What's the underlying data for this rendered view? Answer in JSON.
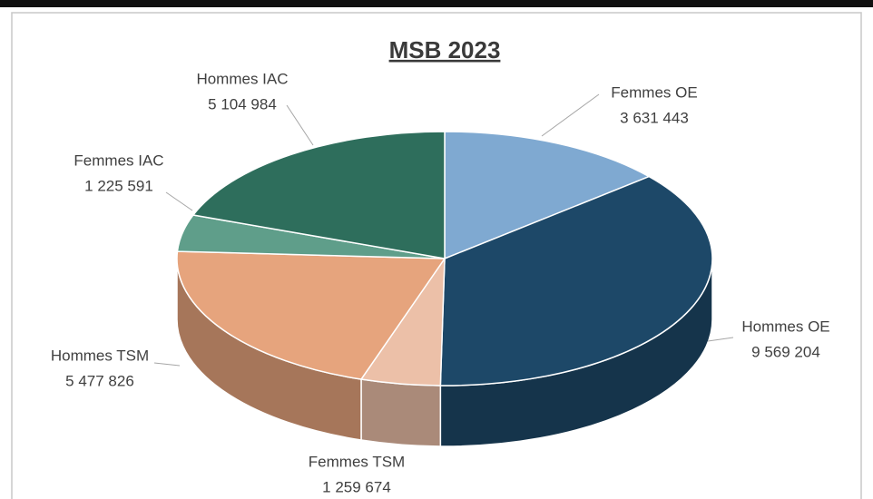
{
  "chart_data": {
    "type": "pie",
    "title": "MSB 2023",
    "categories": [
      "Femmes OE",
      "Hommes OE",
      "Femmes TSM",
      "Hommes TSM",
      "Femmes IAC",
      "Hommes IAC"
    ],
    "values": [
      3631443,
      9569204,
      1259674,
      5477826,
      1225591,
      5104984
    ],
    "value_labels": [
      "3 631 443",
      "9 569 204",
      "1 259 674",
      "5 477 826",
      "1 225 591",
      "5 104 984"
    ],
    "colors": [
      "#7fa9d1",
      "#1d4868",
      "#ecc0a8",
      "#e6a47d",
      "#5f9e8a",
      "#2e6e5c"
    ]
  }
}
